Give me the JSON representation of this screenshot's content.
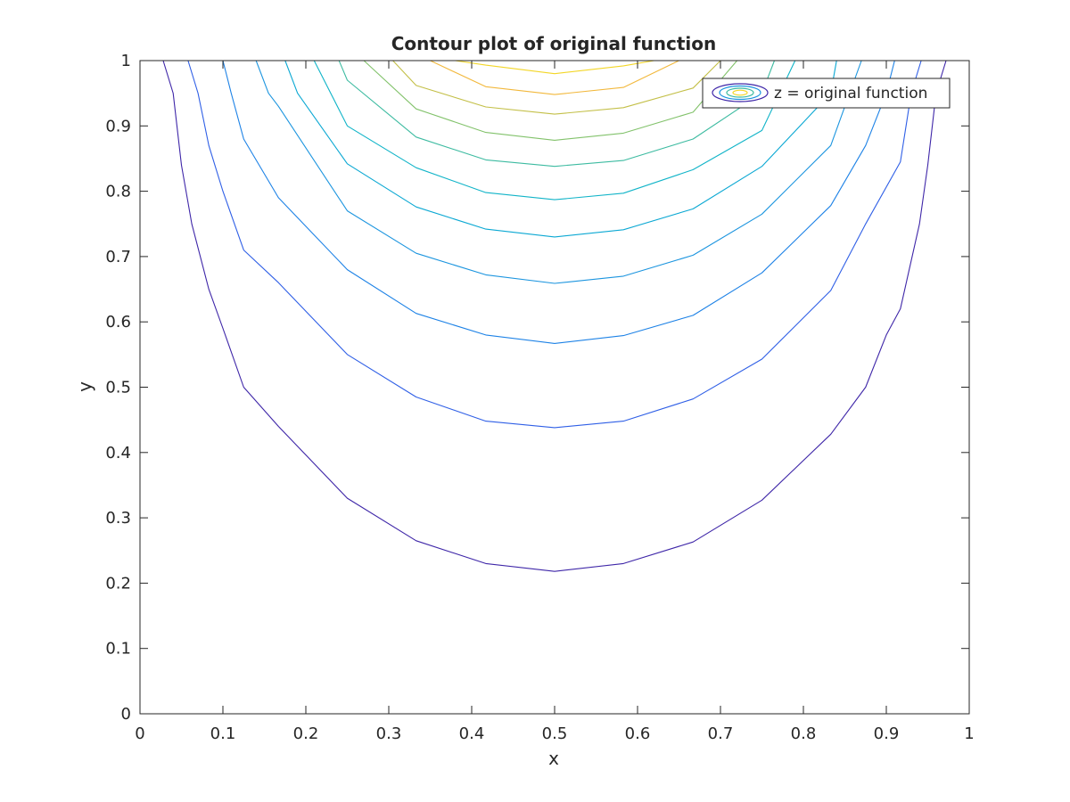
{
  "chart_data": {
    "type": "contour",
    "title": "Contour plot of original function",
    "xlabel": "x",
    "ylabel": "y",
    "xlim": [
      0,
      1
    ],
    "ylim": [
      0,
      1
    ],
    "xticks": [
      "0",
      "0.1",
      "0.2",
      "0.3",
      "0.4",
      "0.5",
      "0.6",
      "0.7",
      "0.8",
      "0.9",
      "1"
    ],
    "yticks": [
      "0",
      "0.1",
      "0.2",
      "0.3",
      "0.4",
      "0.5",
      "0.6",
      "0.7",
      "0.8",
      "0.9",
      "1"
    ],
    "grid": false,
    "box": true,
    "legend": {
      "entries": [
        "z = original function"
      ],
      "placement": "top-right"
    },
    "colormap": "parula",
    "levels": [
      {
        "color": "#3e26a8",
        "points": [
          [
            0.028,
            1.0
          ],
          [
            0.04,
            0.95
          ],
          [
            0.05,
            0.84
          ],
          [
            0.0625,
            0.75
          ],
          [
            0.083,
            0.65
          ],
          [
            0.1,
            0.59
          ],
          [
            0.125,
            0.5
          ],
          [
            0.167,
            0.44
          ],
          [
            0.25,
            0.33
          ],
          [
            0.333,
            0.265
          ],
          [
            0.417,
            0.23
          ],
          [
            0.5,
            0.218
          ],
          [
            0.583,
            0.23
          ],
          [
            0.667,
            0.263
          ],
          [
            0.75,
            0.327
          ],
          [
            0.833,
            0.428
          ],
          [
            0.875,
            0.5
          ],
          [
            0.9,
            0.58
          ],
          [
            0.917,
            0.62
          ],
          [
            0.94,
            0.75
          ],
          [
            0.95,
            0.84
          ],
          [
            0.96,
            0.95
          ],
          [
            0.972,
            1.0
          ]
        ]
      },
      {
        "color": "#2f5fe6",
        "points": [
          [
            0.058,
            1.0
          ],
          [
            0.07,
            0.95
          ],
          [
            0.083,
            0.87
          ],
          [
            0.1,
            0.8
          ],
          [
            0.125,
            0.71
          ],
          [
            0.167,
            0.66
          ],
          [
            0.25,
            0.55
          ],
          [
            0.333,
            0.485
          ],
          [
            0.417,
            0.448
          ],
          [
            0.5,
            0.438
          ],
          [
            0.583,
            0.448
          ],
          [
            0.667,
            0.482
          ],
          [
            0.75,
            0.543
          ],
          [
            0.833,
            0.648
          ],
          [
            0.875,
            0.75
          ],
          [
            0.917,
            0.845
          ],
          [
            0.93,
            0.95
          ],
          [
            0.942,
            1.0
          ]
        ]
      },
      {
        "color": "#1d82e6",
        "points": [
          [
            0.1,
            1.0
          ],
          [
            0.11,
            0.95
          ],
          [
            0.125,
            0.88
          ],
          [
            0.167,
            0.79
          ],
          [
            0.25,
            0.68
          ],
          [
            0.333,
            0.613
          ],
          [
            0.417,
            0.58
          ],
          [
            0.5,
            0.567
          ],
          [
            0.583,
            0.579
          ],
          [
            0.667,
            0.61
          ],
          [
            0.75,
            0.675
          ],
          [
            0.833,
            0.778
          ],
          [
            0.875,
            0.87
          ],
          [
            0.9,
            0.95
          ],
          [
            0.91,
            1.0
          ]
        ]
      },
      {
        "color": "#1c95df",
        "points": [
          [
            0.14,
            1.0
          ],
          [
            0.155,
            0.95
          ],
          [
            0.167,
            0.93
          ],
          [
            0.25,
            0.77
          ],
          [
            0.333,
            0.705
          ],
          [
            0.417,
            0.672
          ],
          [
            0.5,
            0.659
          ],
          [
            0.583,
            0.67
          ],
          [
            0.667,
            0.702
          ],
          [
            0.75,
            0.765
          ],
          [
            0.833,
            0.87
          ],
          [
            0.87,
            1.0
          ]
        ]
      },
      {
        "color": "#0ba8d3",
        "points": [
          [
            0.175,
            1.0
          ],
          [
            0.19,
            0.95
          ],
          [
            0.25,
            0.842
          ],
          [
            0.333,
            0.776
          ],
          [
            0.417,
            0.742
          ],
          [
            0.5,
            0.73
          ],
          [
            0.583,
            0.741
          ],
          [
            0.667,
            0.773
          ],
          [
            0.75,
            0.838
          ],
          [
            0.833,
            0.95
          ],
          [
            0.84,
            1.0
          ]
        ]
      },
      {
        "color": "#11b4c8",
        "points": [
          [
            0.21,
            1.0
          ],
          [
            0.25,
            0.9
          ],
          [
            0.333,
            0.836
          ],
          [
            0.417,
            0.798
          ],
          [
            0.5,
            0.787
          ],
          [
            0.583,
            0.797
          ],
          [
            0.667,
            0.833
          ],
          [
            0.75,
            0.893
          ],
          [
            0.79,
            1.0
          ]
        ]
      },
      {
        "color": "#3dbba1",
        "points": [
          [
            0.24,
            1.0
          ],
          [
            0.25,
            0.97
          ],
          [
            0.333,
            0.883
          ],
          [
            0.417,
            0.848
          ],
          [
            0.5,
            0.838
          ],
          [
            0.583,
            0.847
          ],
          [
            0.667,
            0.88
          ],
          [
            0.75,
            0.95
          ],
          [
            0.765,
            1.0
          ]
        ]
      },
      {
        "color": "#82c26b",
        "points": [
          [
            0.27,
            1.0
          ],
          [
            0.333,
            0.926
          ],
          [
            0.417,
            0.89
          ],
          [
            0.5,
            0.878
          ],
          [
            0.583,
            0.889
          ],
          [
            0.667,
            0.921
          ],
          [
            0.72,
            1.0
          ]
        ]
      },
      {
        "color": "#c3bf47",
        "points": [
          [
            0.305,
            1.0
          ],
          [
            0.333,
            0.962
          ],
          [
            0.417,
            0.929
          ],
          [
            0.5,
            0.918
          ],
          [
            0.583,
            0.928
          ],
          [
            0.667,
            0.958
          ],
          [
            0.7,
            1.0
          ]
        ]
      },
      {
        "color": "#f2b83c",
        "points": [
          [
            0.35,
            1.0
          ],
          [
            0.417,
            0.96
          ],
          [
            0.5,
            0.948
          ],
          [
            0.583,
            0.959
          ],
          [
            0.65,
            1.0
          ]
        ]
      },
      {
        "color": "#f3d626",
        "points": [
          [
            0.38,
            1.0
          ],
          [
            0.417,
            0.993
          ],
          [
            0.5,
            0.98
          ],
          [
            0.583,
            0.992
          ],
          [
            0.62,
            1.0
          ]
        ]
      }
    ]
  }
}
